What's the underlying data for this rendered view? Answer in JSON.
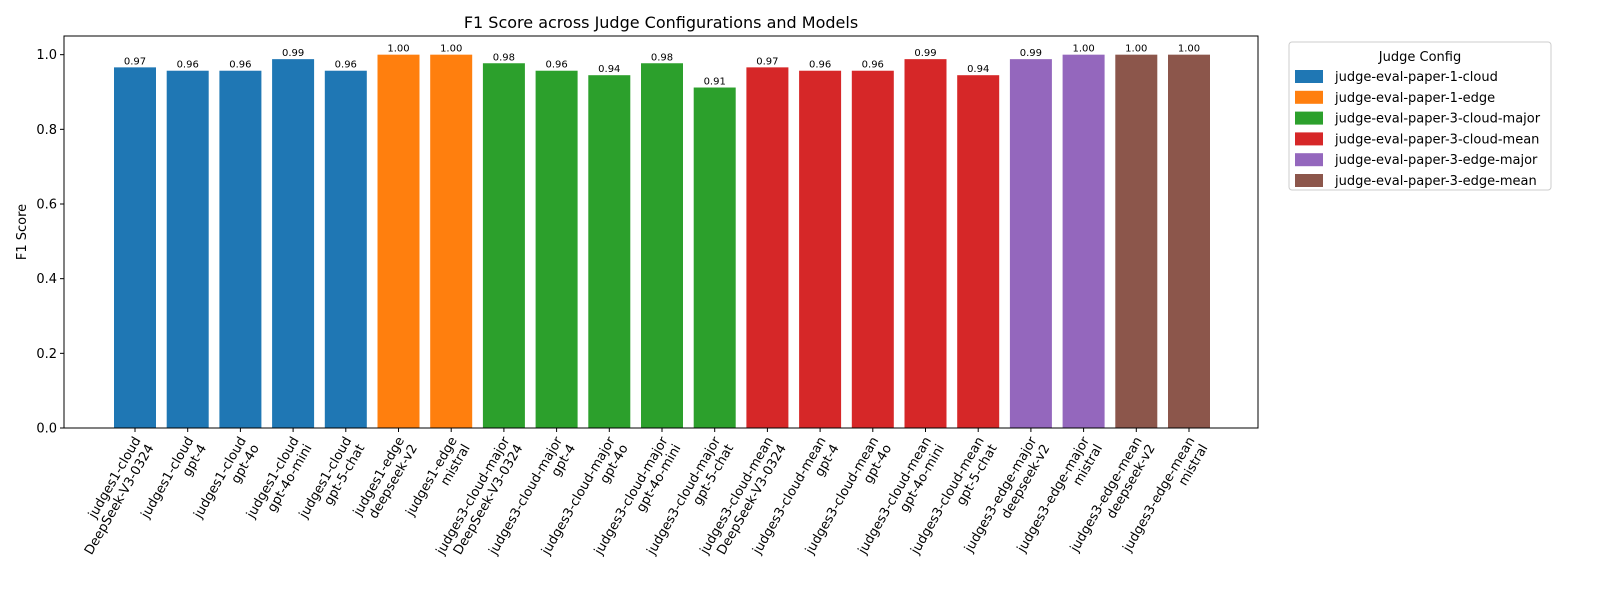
{
  "chart_data": {
    "type": "bar",
    "title": "F1 Score across Judge Configurations and Models",
    "xlabel": "",
    "ylabel": "F1 Score",
    "ylim": [
      0,
      1.05
    ],
    "yticks": [
      "0.0",
      "0.2",
      "0.4",
      "0.6",
      "0.8",
      "1.0"
    ],
    "grid": false,
    "legend": {
      "title": "Judge Config",
      "placement": "outside-top-right"
    },
    "series": [
      {
        "name": "judge-eval-paper-1-cloud",
        "color": "#1f77b4"
      },
      {
        "name": "judge-eval-paper-1-edge",
        "color": "#ff7f0e"
      },
      {
        "name": "judge-eval-paper-3-cloud-major",
        "color": "#2ca02c"
      },
      {
        "name": "judge-eval-paper-3-cloud-mean",
        "color": "#d62728"
      },
      {
        "name": "judge-eval-paper-3-edge-major",
        "color": "#9467bd"
      },
      {
        "name": "judge-eval-paper-3-edge-mean",
        "color": "#8c564b"
      }
    ],
    "bars": [
      {
        "label": [
          "judges1-cloud",
          "DeepSeek-V3-0324"
        ],
        "series": 0,
        "value": 0.966,
        "value_label": "0.97"
      },
      {
        "label": [
          "judges1-cloud",
          "gpt-4"
        ],
        "series": 0,
        "value": 0.957,
        "value_label": "0.96"
      },
      {
        "label": [
          "judges1-cloud",
          "gpt-4o"
        ],
        "series": 0,
        "value": 0.957,
        "value_label": "0.96"
      },
      {
        "label": [
          "judges1-cloud",
          "gpt-4o-mini"
        ],
        "series": 0,
        "value": 0.988,
        "value_label": "0.99"
      },
      {
        "label": [
          "judges1-cloud",
          "gpt-5-chat"
        ],
        "series": 0,
        "value": 0.957,
        "value_label": "0.96"
      },
      {
        "label": [
          "judges1-edge",
          "deepseek-v2"
        ],
        "series": 1,
        "value": 1.0,
        "value_label": "1.00"
      },
      {
        "label": [
          "judges1-edge",
          "mistral"
        ],
        "series": 1,
        "value": 1.0,
        "value_label": "1.00"
      },
      {
        "label": [
          "judges3-cloud-major",
          "DeepSeek-V3-0324"
        ],
        "series": 2,
        "value": 0.977,
        "value_label": "0.98"
      },
      {
        "label": [
          "judges3-cloud-major",
          "gpt-4"
        ],
        "series": 2,
        "value": 0.957,
        "value_label": "0.96"
      },
      {
        "label": [
          "judges3-cloud-major",
          "gpt-4o"
        ],
        "series": 2,
        "value": 0.945,
        "value_label": "0.94"
      },
      {
        "label": [
          "judges3-cloud-major",
          "gpt-4o-mini"
        ],
        "series": 2,
        "value": 0.977,
        "value_label": "0.98"
      },
      {
        "label": [
          "judges3-cloud-major",
          "gpt-5-chat"
        ],
        "series": 2,
        "value": 0.912,
        "value_label": "0.91"
      },
      {
        "label": [
          "judges3-cloud-mean",
          "DeepSeek-V3-0324"
        ],
        "series": 3,
        "value": 0.966,
        "value_label": "0.97"
      },
      {
        "label": [
          "judges3-cloud-mean",
          "gpt-4"
        ],
        "series": 3,
        "value": 0.957,
        "value_label": "0.96"
      },
      {
        "label": [
          "judges3-cloud-mean",
          "gpt-4o"
        ],
        "series": 3,
        "value": 0.957,
        "value_label": "0.96"
      },
      {
        "label": [
          "judges3-cloud-mean",
          "gpt-4o-mini"
        ],
        "series": 3,
        "value": 0.988,
        "value_label": "0.99"
      },
      {
        "label": [
          "judges3-cloud-mean",
          "gpt-5-chat"
        ],
        "series": 3,
        "value": 0.945,
        "value_label": "0.94"
      },
      {
        "label": [
          "judges3-edge-major",
          "deepseek-v2"
        ],
        "series": 4,
        "value": 0.988,
        "value_label": "0.99"
      },
      {
        "label": [
          "judges3-edge-major",
          "mistral"
        ],
        "series": 4,
        "value": 1.0,
        "value_label": "1.00"
      },
      {
        "label": [
          "judges3-edge-mean",
          "deepseek-v2"
        ],
        "series": 5,
        "value": 1.0,
        "value_label": "1.00"
      },
      {
        "label": [
          "judges3-edge-mean",
          "mistral"
        ],
        "series": 5,
        "value": 1.0,
        "value_label": "1.00"
      }
    ]
  }
}
